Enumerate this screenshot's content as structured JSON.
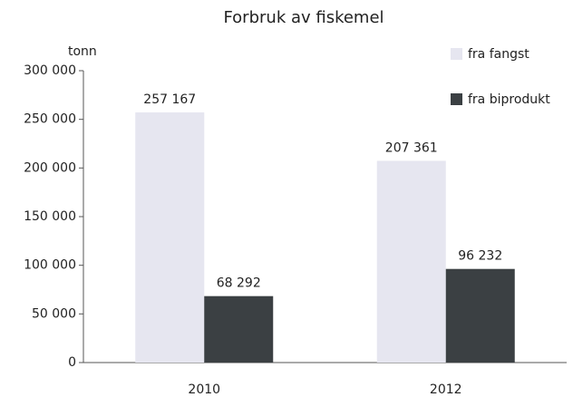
{
  "chart_data": {
    "type": "bar",
    "title": "Forbruk av fiskemel",
    "y_label": "tonn",
    "categories": [
      "2010",
      "2012"
    ],
    "series": [
      {
        "name": "fra fangst",
        "color": "#e6e6f0",
        "values": [
          257167,
          207361
        ],
        "value_labels": [
          "257 167",
          "207 361"
        ]
      },
      {
        "name": "fra biprodukt",
        "color": "#3b4043",
        "values": [
          68292,
          96232
        ],
        "value_labels": [
          "68 292",
          "96 232"
        ]
      }
    ],
    "ylim": [
      0,
      300000
    ],
    "yticks": [
      {
        "value": 0,
        "label": "0"
      },
      {
        "value": 50000,
        "label": "50 000"
      },
      {
        "value": 100000,
        "label": "100 000"
      },
      {
        "value": 150000,
        "label": "150 000"
      },
      {
        "value": 200000,
        "label": "200 000"
      },
      {
        "value": 250000,
        "label": "250 000"
      },
      {
        "value": 300000,
        "label": "300 000"
      }
    ],
    "legend": "top-right",
    "grid": false
  }
}
